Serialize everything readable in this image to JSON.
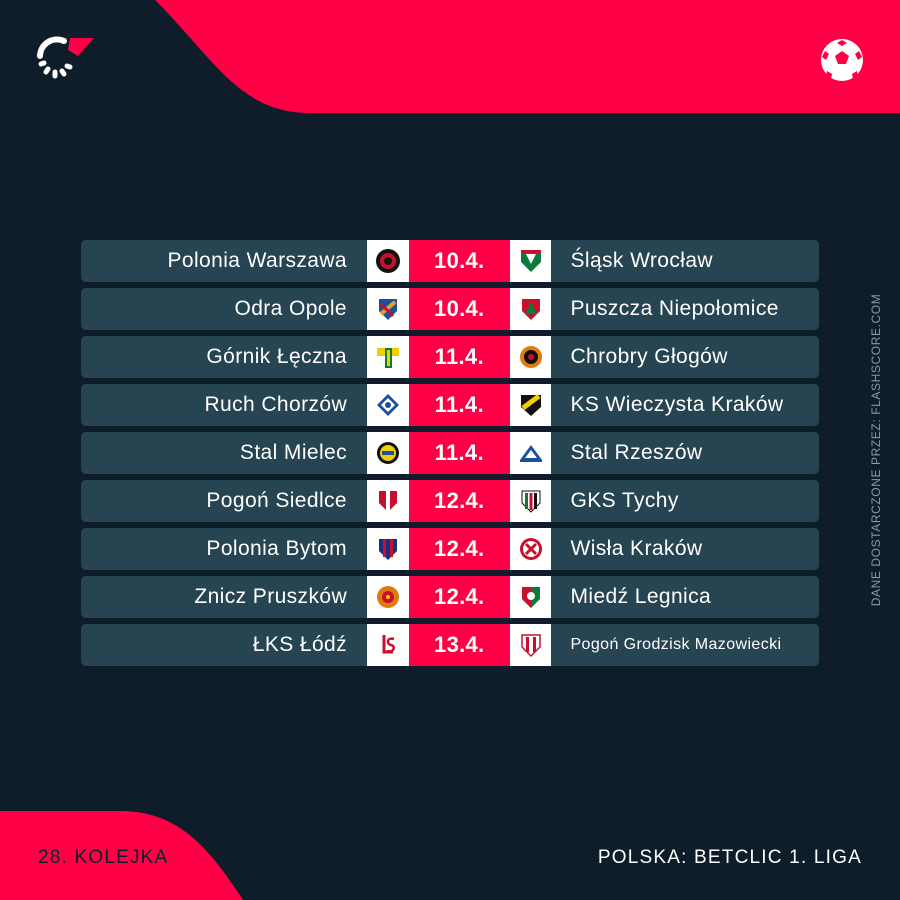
{
  "brand": {
    "logo_icon": "flashscore-logo-icon",
    "sport_icon": "football-icon"
  },
  "colors": {
    "background": "#0f1d2b",
    "accent": "#ff0046",
    "row": "#264452",
    "crest_bg": "#ffffff"
  },
  "fixtures": [
    {
      "home": "Polonia Warszawa",
      "date": "10.4.",
      "away": "Śląsk Wrocław"
    },
    {
      "home": "Odra Opole",
      "date": "10.4.",
      "away": "Puszcza Niepołomice"
    },
    {
      "home": "Górnik Łęczna",
      "date": "11.4.",
      "away": "Chrobry Głogów"
    },
    {
      "home": "Ruch Chorzów",
      "date": "11.4.",
      "away": "KS Wieczysta Kraków"
    },
    {
      "home": "Stal Mielec",
      "date": "11.4.",
      "away": "Stal Rzeszów"
    },
    {
      "home": "Pogoń Siedlce",
      "date": "12.4.",
      "away": "GKS Tychy"
    },
    {
      "home": "Polonia Bytom",
      "date": "12.4.",
      "away": "Wisła Kraków"
    },
    {
      "home": "Znicz Pruszków",
      "date": "12.4.",
      "away": "Miedź Legnica"
    },
    {
      "home": "ŁKS Łódź",
      "date": "13.4.",
      "away": "Pogoń Grodzisk Mazowiecki"
    }
  ],
  "footer": {
    "round": "28. KOLEJKA",
    "league": "POLSKA: BETCLIC 1. LIGA",
    "source": "DANE DOSTARCZONE PRZEZ: FLASHSCORE.COM"
  }
}
